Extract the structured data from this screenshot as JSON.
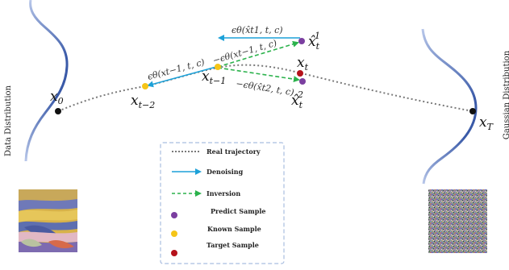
{
  "labels": {
    "data_distribution": "Data Distribution",
    "gaussian_distribution": "Gaussian Distribution",
    "x0": "x",
    "x0_sub": "0",
    "xT": "x",
    "xT_sub": "T",
    "xt": "x",
    "xt_sub": "t",
    "xt_minus_1": "x",
    "xt_minus_1_sub": "t−1",
    "xt_minus_2": "x",
    "xt_minus_2_sub": "t−2",
    "xhat1": "x̂",
    "xhat1_sub": "t",
    "xhat1_sup": "1",
    "xhat2": "x̂",
    "xhat2_sub": "t",
    "xhat2_sup": "2"
  },
  "formulas": {
    "denoise_xt1": "ϵθ(xt−1, t, c)",
    "top": "ϵθ(x̂t1, t, c)",
    "inv_mid": "−ϵθ(xt−1, t, c)",
    "inv_low": "−ϵθ(x̂t2, t, c)"
  },
  "legend": {
    "items": [
      {
        "label": "Real trajectory",
        "kind": "dotted"
      },
      {
        "label": "Denoising",
        "kind": "solid-arrow"
      },
      {
        "label": "Inversion",
        "kind": "dashed-arrow"
      },
      {
        "label": "Predict Sample",
        "kind": "dot",
        "color": "#7b3fa0"
      },
      {
        "label": "Known Sample",
        "kind": "dot",
        "color": "#f5c518"
      },
      {
        "label": "Target Sample",
        "kind": "dot",
        "color": "#b5121b"
      }
    ]
  },
  "colors": {
    "denoising": "#1da1d8",
    "inversion": "#2bb24c",
    "trajectory": "#7a7a7a",
    "predict": "#7b3fa0",
    "known": "#f5c518",
    "target": "#b5121b",
    "curve_dark": "#3a5aa8",
    "curve_light": "#b9c8ea"
  }
}
